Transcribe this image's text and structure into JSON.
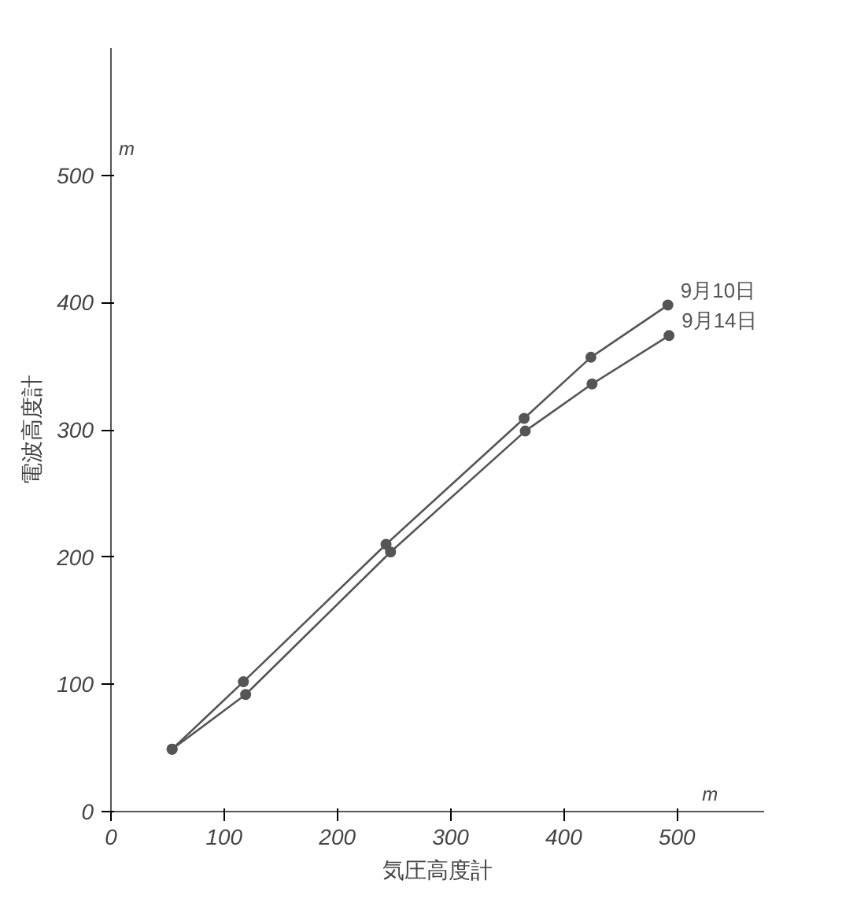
{
  "chart_data": {
    "type": "line",
    "xlabel": "気圧高度計",
    "ylabel": "電波高度計",
    "annotations": [
      "m",
      "m"
    ],
    "x": [
      54,
      117,
      243,
      365,
      424,
      492
    ],
    "series": [
      {
        "name": "9月10日",
        "color": "#555555",
        "values": [
          49,
          102,
          210,
          309,
          357,
          398
        ]
      },
      {
        "name": "9月14日",
        "color": "#555555",
        "x": [
          54,
          119,
          247,
          366,
          425,
          493
        ],
        "values": [
          49,
          92,
          204,
          299,
          336,
          374
        ]
      }
    ],
    "xlim": [
      0,
      577
    ],
    "ylim": [
      0,
      600
    ],
    "xticks": [
      0,
      100,
      200,
      300,
      400,
      500
    ],
    "yticks": [
      0,
      100,
      200,
      300,
      400,
      500
    ],
    "grid": false,
    "marker": "circle",
    "line_style": "solid"
  }
}
